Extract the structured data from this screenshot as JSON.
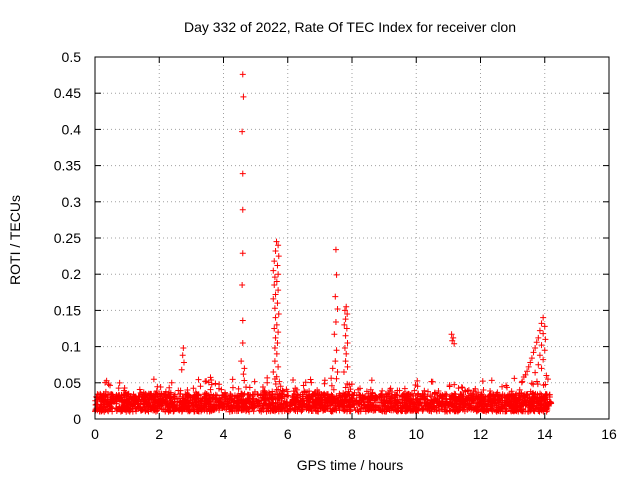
{
  "chart_data": {
    "type": "scatter",
    "title": "Day 332 of 2022, Rate Of TEC Index for receiver clon",
    "xlabel": "GPS time / hours",
    "ylabel": "ROTI / TECUs",
    "xlim": [
      0,
      16
    ],
    "ylim": [
      0,
      0.5
    ],
    "xticks": [
      0,
      2,
      4,
      6,
      8,
      10,
      12,
      14,
      16
    ],
    "yticks": [
      0,
      0.05,
      0.1,
      0.15,
      0.2,
      0.25,
      0.3,
      0.35,
      0.4,
      0.45,
      0.5
    ],
    "grid": true,
    "marker": "+",
    "color": "#ff0000",
    "series": [
      {
        "name": "ROTI",
        "points": [
          [
            4.6,
            0.476
          ],
          [
            4.62,
            0.445
          ],
          [
            4.58,
            0.397
          ],
          [
            4.6,
            0.339
          ],
          [
            4.6,
            0.289
          ],
          [
            4.6,
            0.229
          ],
          [
            4.58,
            0.185
          ],
          [
            4.6,
            0.136
          ],
          [
            4.6,
            0.105
          ],
          [
            4.55,
            0.08
          ],
          [
            4.65,
            0.07
          ],
          [
            4.62,
            0.062
          ],
          [
            5.65,
            0.245
          ],
          [
            5.7,
            0.24
          ],
          [
            5.62,
            0.232
          ],
          [
            5.72,
            0.225
          ],
          [
            5.58,
            0.218
          ],
          [
            5.68,
            0.212
          ],
          [
            5.55,
            0.205
          ],
          [
            5.7,
            0.2
          ],
          [
            5.6,
            0.196
          ],
          [
            5.66,
            0.19
          ],
          [
            5.58,
            0.185
          ],
          [
            5.7,
            0.178
          ],
          [
            5.62,
            0.172
          ],
          [
            5.55,
            0.166
          ],
          [
            5.68,
            0.16
          ],
          [
            5.6,
            0.153
          ],
          [
            5.72,
            0.145
          ],
          [
            5.62,
            0.14
          ],
          [
            5.66,
            0.13
          ],
          [
            5.58,
            0.125
          ],
          [
            5.7,
            0.12
          ],
          [
            5.62,
            0.112
          ],
          [
            5.68,
            0.105
          ],
          [
            5.6,
            0.098
          ],
          [
            5.66,
            0.09
          ],
          [
            5.6,
            0.08
          ],
          [
            5.7,
            0.072
          ],
          [
            5.55,
            0.065
          ],
          [
            7.5,
            0.234
          ],
          [
            7.52,
            0.199
          ],
          [
            7.48,
            0.169
          ],
          [
            7.55,
            0.152
          ],
          [
            7.5,
            0.134
          ],
          [
            7.45,
            0.117
          ],
          [
            7.52,
            0.095
          ],
          [
            7.48,
            0.08
          ],
          [
            7.4,
            0.07
          ],
          [
            7.55,
            0.065
          ],
          [
            7.82,
            0.155
          ],
          [
            7.78,
            0.15
          ],
          [
            7.85,
            0.145
          ],
          [
            7.8,
            0.138
          ],
          [
            7.76,
            0.13
          ],
          [
            7.84,
            0.125
          ],
          [
            7.8,
            0.115
          ],
          [
            7.86,
            0.105
          ],
          [
            7.78,
            0.098
          ],
          [
            7.82,
            0.09
          ],
          [
            7.8,
            0.08
          ],
          [
            7.86,
            0.072
          ],
          [
            7.75,
            0.065
          ],
          [
            2.75,
            0.098
          ],
          [
            2.73,
            0.088
          ],
          [
            2.77,
            0.078
          ],
          [
            2.7,
            0.068
          ],
          [
            11.1,
            0.117
          ],
          [
            11.15,
            0.112
          ],
          [
            11.12,
            0.108
          ],
          [
            11.18,
            0.104
          ],
          [
            13.95,
            0.14
          ],
          [
            13.9,
            0.132
          ],
          [
            14.0,
            0.128
          ],
          [
            13.85,
            0.122
          ],
          [
            13.95,
            0.118
          ],
          [
            13.8,
            0.112
          ],
          [
            14.02,
            0.11
          ],
          [
            13.75,
            0.106
          ],
          [
            13.9,
            0.102
          ],
          [
            13.7,
            0.098
          ],
          [
            14.0,
            0.095
          ],
          [
            13.65,
            0.092
          ],
          [
            13.85,
            0.088
          ],
          [
            13.6,
            0.084
          ],
          [
            13.95,
            0.082
          ],
          [
            13.55,
            0.078
          ],
          [
            13.8,
            0.075
          ],
          [
            13.5,
            0.072
          ],
          [
            13.9,
            0.07
          ],
          [
            13.45,
            0.066
          ],
          [
            13.7,
            0.064
          ],
          [
            13.4,
            0.061
          ],
          [
            14.05,
            0.06
          ],
          [
            13.35,
            0.058
          ],
          [
            14.1,
            0.055
          ],
          [
            13.3,
            0.052
          ]
        ],
        "dense_band": {
          "x_start": 0.0,
          "x_end": 14.2,
          "typical_y": [
            0.01,
            0.035
          ],
          "max_y": 0.06
        }
      }
    ]
  }
}
